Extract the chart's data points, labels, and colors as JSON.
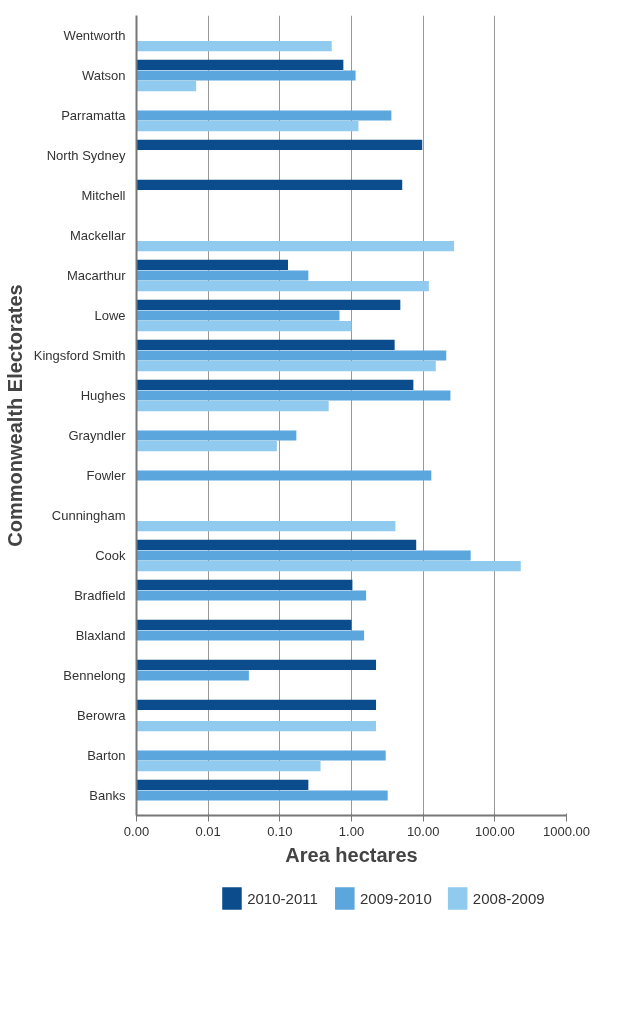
{
  "chart_data": {
    "type": "bar",
    "orientation": "horizontal",
    "log": "x",
    "xlabel": "Area hectares",
    "ylabel": "Commonwealth Electorates",
    "categories": [
      "Wentworth",
      "Watson",
      "Parramatta",
      "North Sydney",
      "Mitchell",
      "Mackellar",
      "Macarthur",
      "Lowe",
      "Kingsford Smith",
      "Hughes",
      "Grayndler",
      "Fowler",
      "Cunningham",
      "Cook",
      "Bradfield",
      "Blaxland",
      "Bennelong",
      "Berowra",
      "Barton",
      "Banks"
    ],
    "series": [
      {
        "name": "2010-2011",
        "color": "#0b4d8c",
        "values": [
          null,
          0.77,
          null,
          9.7,
          5.1,
          null,
          0.13,
          4.8,
          4.0,
          7.3,
          null,
          null,
          null,
          8.0,
          1.03,
          1.0,
          2.2,
          2.2,
          null,
          0.25
        ]
      },
      {
        "name": "2009-2010",
        "color": "#5aa6dd",
        "values": [
          null,
          1.14,
          3.6,
          null,
          null,
          null,
          0.25,
          0.68,
          21,
          24,
          0.17,
          13,
          null,
          46,
          1.6,
          1.5,
          0.037,
          null,
          3.0,
          3.2
        ]
      },
      {
        "name": "2008-2009",
        "color": "#90caee",
        "values": [
          0.53,
          0.0068,
          1.25,
          null,
          null,
          27,
          12,
          1.0,
          15,
          0.48,
          0.091,
          null,
          4.1,
          230,
          null,
          null,
          null,
          2.2,
          0.37,
          null
        ]
      }
    ],
    "xlim": [
      0.001,
      1000
    ],
    "xticks": [
      {
        "value": 0.001,
        "label": "0.00"
      },
      0.01,
      {
        "value": 0.1,
        "label": "0.10"
      },
      {
        "value": 1,
        "label": "1.00"
      },
      {
        "value": 10,
        "label": "10.00"
      },
      {
        "value": 100,
        "label": "100.00"
      },
      {
        "value": 1000,
        "label": "1000.00"
      }
    ],
    "grid": "x",
    "legend": "bottom"
  }
}
